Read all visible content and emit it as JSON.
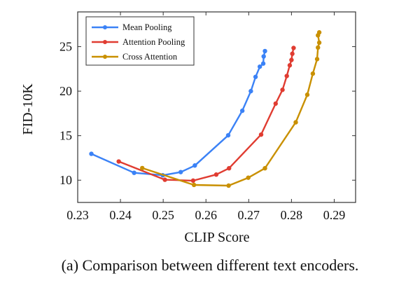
{
  "chart_data": {
    "type": "line",
    "title": "",
    "xlabel": "CLIP Score",
    "ylabel": "FID-10K",
    "xlim": [
      0.23,
      0.295
    ],
    "ylim": [
      7.5,
      28.9
    ],
    "xticks": [
      "0.23",
      "0.24",
      "0.25",
      "0.26",
      "0.27",
      "0.28",
      "0.29"
    ],
    "yticks": [
      "10",
      "15",
      "20",
      "25"
    ],
    "grid": false,
    "legend_position": "top-left",
    "series": [
      {
        "name": "Mean Pooling",
        "color": "#3b82f6",
        "x": [
          0.2332,
          0.2432,
          0.2499,
          0.2541,
          0.2574,
          0.2652,
          0.2685,
          0.2705,
          0.2716,
          0.2726,
          0.2734,
          0.2735,
          0.2738
        ],
        "y": [
          12.96,
          10.83,
          10.55,
          10.91,
          11.65,
          15.04,
          17.8,
          20.0,
          21.6,
          22.75,
          23.1,
          23.9,
          24.5
        ]
      },
      {
        "name": "Attention Pooling",
        "color": "#e03c31",
        "x": [
          0.2396,
          0.2504,
          0.257,
          0.2624,
          0.2654,
          0.2729,
          0.2763,
          0.2779,
          0.2789,
          0.2796,
          0.28,
          0.2802,
          0.2805
        ],
        "y": [
          12.1,
          10.05,
          9.95,
          10.63,
          11.34,
          15.12,
          18.6,
          20.15,
          21.7,
          22.9,
          23.5,
          24.2,
          24.85
        ]
      },
      {
        "name": "Cross Attention",
        "color": "#c99000",
        "x": [
          0.2451,
          0.2572,
          0.2653,
          0.2699,
          0.2738,
          0.281,
          0.2837,
          0.285,
          0.286,
          0.2862,
          0.2865,
          0.2862,
          0.2865
        ],
        "y": [
          11.36,
          9.47,
          9.39,
          10.28,
          11.34,
          16.5,
          19.6,
          21.97,
          23.6,
          24.9,
          25.45,
          26.27,
          26.6
        ]
      }
    ]
  },
  "caption": "(a) Comparison between different text encoders."
}
